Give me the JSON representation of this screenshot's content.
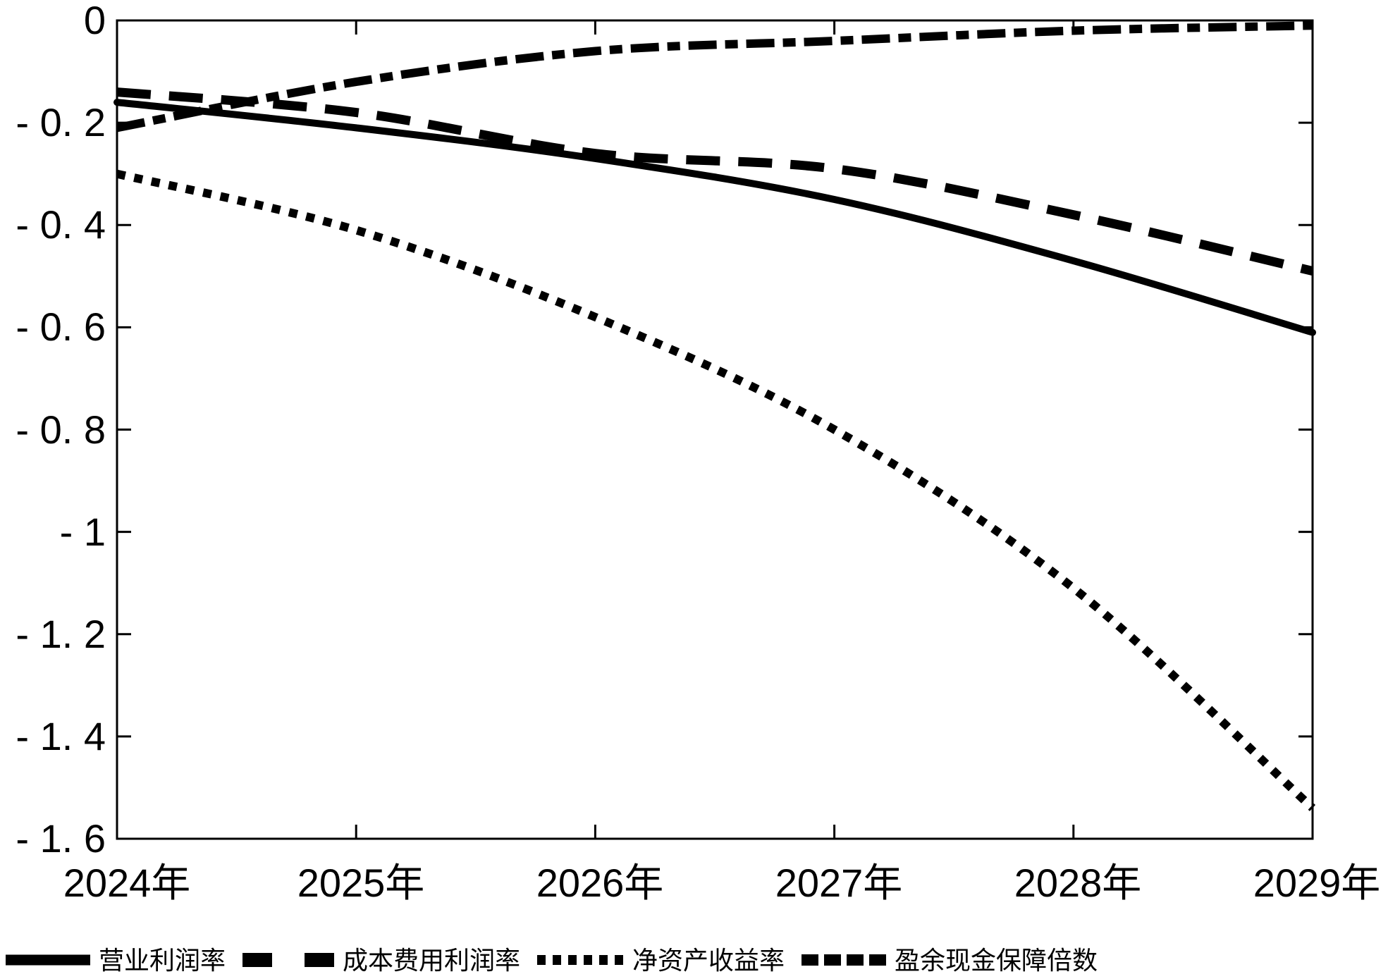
{
  "chart_data": {
    "type": "line",
    "title": "",
    "xlabel": "",
    "ylabel": "",
    "grid": false,
    "legend_position": "bottom",
    "background_color": "#ffffff",
    "line_color": "#000000",
    "ylim": [
      -1.6,
      0
    ],
    "y_ticks": [
      0,
      -0.2,
      -0.4,
      -0.6,
      -0.8,
      -1.0,
      -1.2,
      -1.4,
      -1.6
    ],
    "y_tick_labels": [
      "0",
      "- 0. 2",
      "- 0. 4",
      "- 0. 6",
      "- 0. 8",
      "- 1",
      "- 1. 2",
      "- 1. 4",
      "- 1. 6"
    ],
    "x_labels": [
      "2024年",
      "2025年",
      "2026年",
      "2027年",
      "2028年",
      "2029年"
    ],
    "series": [
      {
        "name": "营业利润率",
        "style": "solid",
        "values": [
          -0.16,
          -0.21,
          -0.27,
          -0.35,
          -0.47,
          -0.61
        ]
      },
      {
        "name": "成本费用利润率",
        "style": "dashed",
        "values": [
          -0.14,
          -0.18,
          -0.26,
          -0.29,
          -0.38,
          -0.49
        ]
      },
      {
        "name": "净资产收益率",
        "style": "dotted",
        "values": [
          -0.3,
          -0.41,
          -0.58,
          -0.8,
          -1.11,
          -1.54
        ]
      },
      {
        "name": "盈余现金保障倍数",
        "style": "dashdot",
        "values": [
          -0.21,
          -0.12,
          -0.06,
          -0.04,
          -0.02,
          -0.01
        ]
      }
    ]
  }
}
